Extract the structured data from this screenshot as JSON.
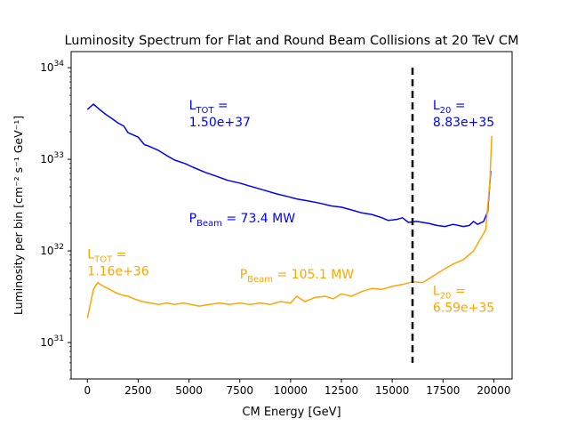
{
  "chart_data": {
    "type": "line",
    "title": "Luminosity Spectrum for Flat and Round Beam Collisions at 20 TeV CM",
    "xlabel": "CM Energy [GeV]",
    "ylabel": "Luminosity per bin [cm⁻² s⁻¹ GeV⁻¹]",
    "xlim": [
      -800,
      20900
    ],
    "ylim": [
      4e+30,
      1.5e+34
    ],
    "yscale": "log",
    "grid": false,
    "xticks": [
      0,
      2500,
      5000,
      7500,
      10000,
      12500,
      15000,
      17500,
      20000
    ],
    "xtick_labels": [
      "0",
      "2500",
      "5000",
      "7500",
      "10000",
      "12500",
      "15000",
      "17500",
      "20000"
    ],
    "yticks": [
      1e+31,
      1e+32,
      1e+33,
      1e+34
    ],
    "ytick_labels": [
      {
        "base": "10",
        "exp": "31"
      },
      {
        "base": "10",
        "exp": "32"
      },
      {
        "base": "10",
        "exp": "33"
      },
      {
        "base": "10",
        "exp": "34"
      }
    ],
    "series": [
      {
        "color": "#0000ff",
        "x": [
          0,
          300,
          600,
          900,
          1200,
          1500,
          1800,
          2000,
          2500,
          2800,
          3000,
          3500,
          3900,
          4300,
          4800,
          5200,
          5800,
          6300,
          6900,
          7500,
          8000,
          8700,
          9300,
          9900,
          10300,
          10900,
          11500,
          12000,
          12500,
          13000,
          13500,
          14000,
          14500,
          14800,
          15200,
          15500,
          15800,
          16200,
          16800,
          17200,
          17600,
          18000,
          18500,
          18800,
          19000,
          19200,
          19500,
          19700,
          19850
        ],
        "y": [
          3.5e+33,
          4e+33,
          3.5e+33,
          3.1e+33,
          2.8e+33,
          2.5e+33,
          2.3e+33,
          1.95e+33,
          1.75e+33,
          1.45e+33,
          1.4e+33,
          1.25e+33,
          1.1e+33,
          9.8e+32,
          9e+32,
          8.2e+32,
          7.2e+32,
          6.6e+32,
          5.9e+32,
          5.5e+32,
          5.1e+32,
          4.6e+32,
          4.2e+32,
          3.9e+32,
          3.7e+32,
          3.5e+32,
          3.3e+32,
          3.1e+32,
          3e+32,
          2.8e+32,
          2.6e+32,
          2.5e+32,
          2.3e+32,
          2.15e+32,
          2.2e+32,
          2.3e+32,
          2.05e+32,
          2.1e+32,
          2e+32,
          1.9e+32,
          1.85e+32,
          1.95e+32,
          1.85e+32,
          1.9e+32,
          2.1e+32,
          1.95e+32,
          2.1e+32,
          2.7e+32,
          7.5e+32
        ]
      },
      {
        "color": "#ffa500",
        "x": [
          0,
          300,
          500,
          800,
          1100,
          1400,
          1700,
          2000,
          2300,
          2700,
          3100,
          3500,
          3900,
          4300,
          4700,
          5100,
          5500,
          6000,
          6500,
          7000,
          7500,
          8000,
          8500,
          9000,
          9500,
          10000,
          10300,
          10700,
          11200,
          11700,
          12100,
          12500,
          13000,
          13500,
          14000,
          14500,
          15000,
          15500,
          16000,
          16500,
          17000,
          17500,
          18000,
          18500,
          19000,
          19300,
          19600,
          19800,
          19900
        ],
        "y": [
          1.85e+31,
          3.8e+31,
          4.5e+31,
          4.1e+31,
          3.8e+31,
          3.5e+31,
          3.3e+31,
          3.2e+31,
          3e+31,
          2.8e+31,
          2.7e+31,
          2.6e+31,
          2.7e+31,
          2.6e+31,
          2.7e+31,
          2.6e+31,
          2.5e+31,
          2.6e+31,
          2.7e+31,
          2.6e+31,
          2.7e+31,
          2.6e+31,
          2.7e+31,
          2.6e+31,
          2.8e+31,
          2.7e+31,
          3.2e+31,
          2.8e+31,
          3.1e+31,
          3.2e+31,
          3e+31,
          3.4e+31,
          3.2e+31,
          3.6e+31,
          3.9e+31,
          3.8e+31,
          4.1e+31,
          4.3e+31,
          4.6e+31,
          4.5e+31,
          5.3e+31,
          6.2e+31,
          7.2e+31,
          8e+31,
          1e+32,
          1.3e+32,
          1.7e+32,
          5.5e+32,
          1.8e+33
        ]
      }
    ],
    "vline": {
      "x": 16000,
      "ymin": 6e+30,
      "ymax": 1e+34,
      "style": "dashed",
      "color": "#000000"
    },
    "annotations": [
      {
        "id": "ltot-blue",
        "color": "#0000ff",
        "x": 5000,
        "y": 3.5e+33,
        "main": "L",
        "sub": "TOT",
        "rest": " =",
        "line2": " 1.50e+37"
      },
      {
        "id": "pbeam-blue",
        "color": "#0000ff",
        "x": 5000,
        "y": 2.05e+32,
        "main": "P",
        "sub": "Beam",
        "rest": " = 73.4 MW",
        "line2": ""
      },
      {
        "id": "l20-blue",
        "color": "#0000ff",
        "x": 17000,
        "y": 3.5e+33,
        "main": "L",
        "sub": "20",
        "rest": " =",
        "line2": " 8.83e+35"
      },
      {
        "id": "ltot-orange",
        "color": "#ffa500",
        "x": 0,
        "y": 8.3e+31,
        "main": "L",
        "sub": "TOT",
        "rest": " =",
        "line2": " 1.16e+36"
      },
      {
        "id": "pbeam-orange",
        "color": "#ffa500",
        "x": 7500,
        "y": 5e+31,
        "main": "P",
        "sub": "Beam",
        "rest": " = 105.1 MW",
        "line2": ""
      },
      {
        "id": "l20-orange",
        "color": "#ffa500",
        "x": 17000,
        "y": 3.3e+31,
        "main": "L",
        "sub": "20",
        "rest": " =",
        "line2": " 6.59e+35"
      }
    ]
  }
}
